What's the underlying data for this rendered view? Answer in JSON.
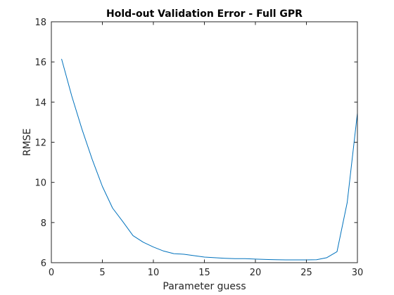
{
  "chart_data": {
    "type": "line",
    "title": "Hold-out Validation Error - Full GPR",
    "xlabel": "Parameter guess",
    "ylabel": "RMSE",
    "xlim": [
      0,
      30
    ],
    "ylim": [
      6,
      18
    ],
    "xticks": [
      0,
      5,
      10,
      15,
      20,
      25,
      30
    ],
    "yticks": [
      6,
      8,
      10,
      12,
      14,
      16,
      18
    ],
    "grid": false,
    "line_color": "#0072BD",
    "series": [
      {
        "x": [
          1,
          2,
          3,
          4,
          5,
          6,
          7,
          8,
          9,
          10,
          11,
          12,
          13,
          14,
          15,
          16,
          17,
          18,
          19,
          20,
          21,
          22,
          23,
          24,
          25,
          26,
          27,
          28,
          29,
          30
        ],
        "values": [
          16.15,
          14.3,
          12.65,
          11.15,
          9.8,
          8.72,
          8.05,
          7.35,
          7.02,
          6.78,
          6.58,
          6.45,
          6.42,
          6.35,
          6.28,
          6.25,
          6.22,
          6.2,
          6.2,
          6.18,
          6.16,
          6.15,
          6.14,
          6.14,
          6.14,
          6.15,
          6.25,
          6.55,
          9.0,
          13.45
        ]
      }
    ]
  }
}
